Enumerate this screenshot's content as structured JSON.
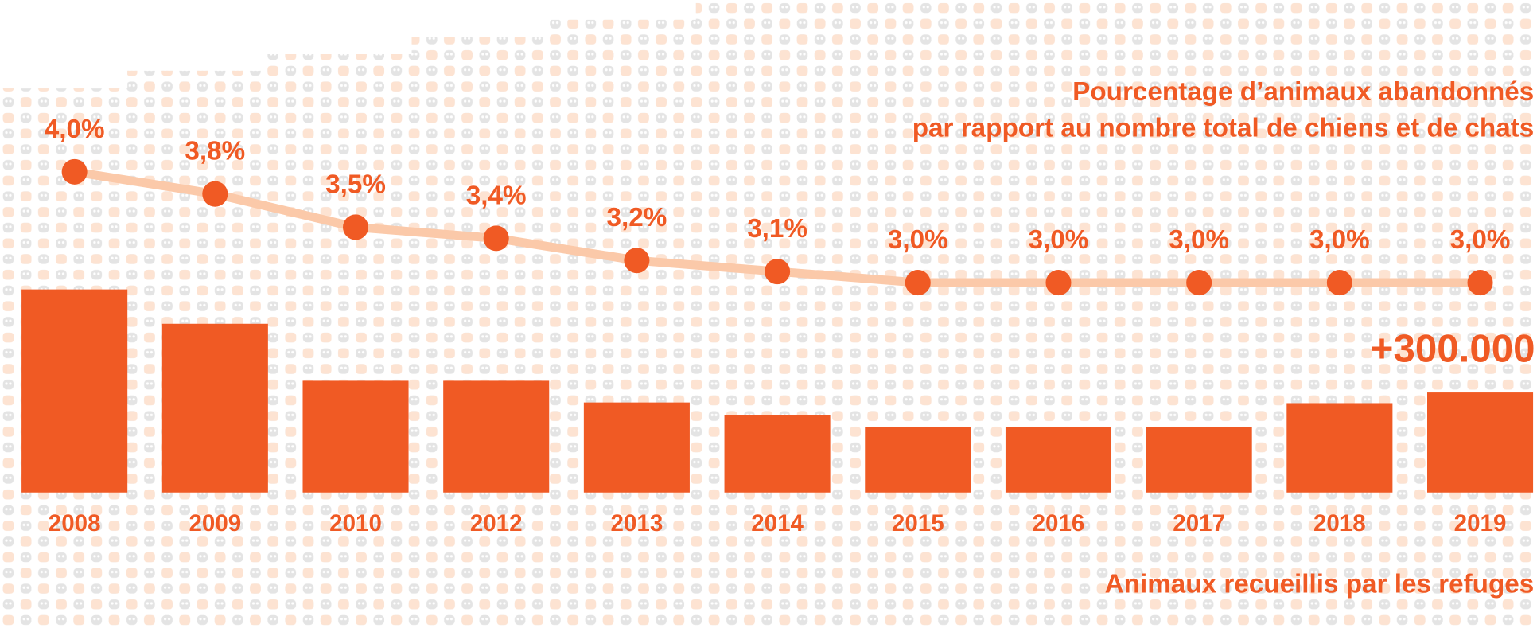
{
  "chart_data": {
    "type": "combo",
    "title": [
      "Pourcentage d’animaux abandonnés",
      "par rapport au nombre total de chiens et de chats"
    ],
    "x_axis_title": "Animaux recueillis par les refuges",
    "categories": [
      "2008",
      "2009",
      "2010",
      "2012",
      "2013",
      "2014",
      "2015",
      "2016",
      "2017",
      "2018",
      "2019"
    ],
    "bars": {
      "color": "#f05a24",
      "values": [
        609000,
        506000,
        335000,
        335000,
        270000,
        232000,
        197000,
        197000,
        197000,
        268000,
        300000
      ],
      "value_labels": [
        null,
        null,
        null,
        null,
        null,
        null,
        null,
        null,
        null,
        null,
        "+300.000"
      ]
    },
    "line": {
      "color": "#f05a24",
      "line_color": "#fbc9a9",
      "axis": "y2",
      "values": [
        4.0,
        3.8,
        3.5,
        3.4,
        3.2,
        3.1,
        3.0,
        3.0,
        3.0,
        3.0,
        3.0
      ],
      "value_labels": [
        "4,0%",
        "3,8%",
        "3,5%",
        "3,4%",
        "3,2%",
        "3,1%",
        "3,0%",
        "3,0%",
        "3,0%",
        "3,0%",
        "3,0%"
      ]
    },
    "ylim": [
      0,
      700000
    ],
    "y2lim": [
      0,
      5
    ]
  }
}
